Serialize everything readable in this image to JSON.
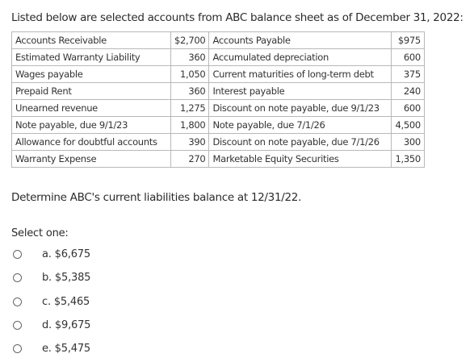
{
  "intro": "Listed below are selected accounts from ABC balance sheet as of December 31, 2022:",
  "accounts_table": {
    "rows": [
      [
        "Accounts Receivable",
        "$2,700",
        "Accounts Payable",
        "$975"
      ],
      [
        "Estimated Warranty Liability",
        "360",
        "Accumulated depreciation",
        "600"
      ],
      [
        "Wages payable",
        "1,050",
        "Current maturities of long-term debt",
        "375"
      ],
      [
        "Prepaid Rent",
        "360",
        "Interest payable",
        "240"
      ],
      [
        "Unearned revenue",
        "1,275",
        "Discount on note payable, due 9/1/23",
        "600"
      ],
      [
        "Note payable, due 9/1/23",
        "1,800",
        "Note payable, due 7/1/26",
        "4,500"
      ],
      [
        "Allowance for doubtful accounts",
        "390",
        "Discount on note payable, due 7/1/26",
        "300"
      ],
      [
        "Warranty Expense",
        "270",
        "Marketable Equity Securities",
        "1,350"
      ]
    ]
  },
  "question": "Determine ABC's current liabilities balance at 12/31/22.",
  "select_label": "Select one:",
  "options": [
    {
      "letter": "a.",
      "text": "$6,675"
    },
    {
      "letter": "b.",
      "text": "$5,385"
    },
    {
      "letter": "c.",
      "text": "$5,465"
    },
    {
      "letter": "d.",
      "text": "$9,675"
    },
    {
      "letter": "e.",
      "text": "$5,475"
    }
  ]
}
